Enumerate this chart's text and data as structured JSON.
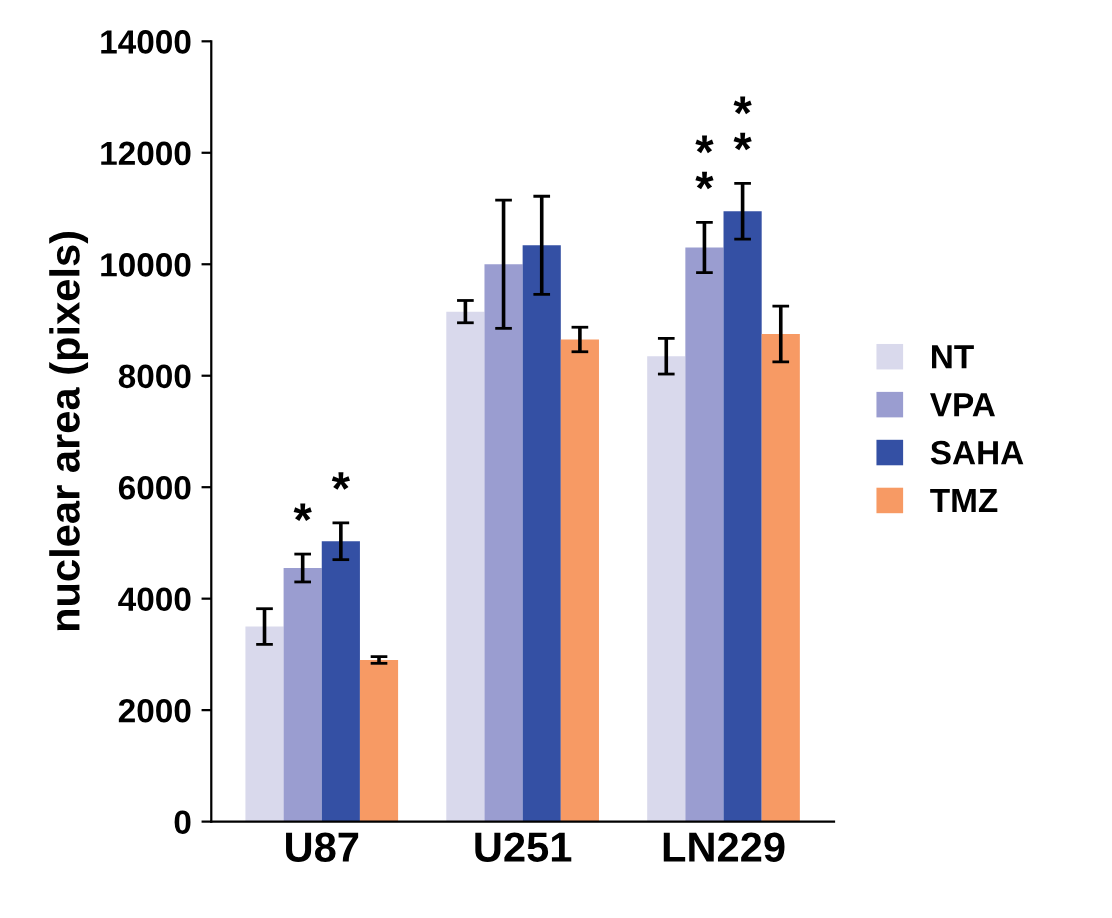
{
  "chart_data": {
    "type": "bar",
    "ylabel": "nuclear area (pixels)",
    "categories": [
      "U87",
      "U251",
      "LN229"
    ],
    "series": [
      {
        "name": "NT",
        "color": "#d9d9ec",
        "values": [
          3500,
          9150,
          8350
        ],
        "errors": [
          320,
          200,
          320
        ]
      },
      {
        "name": "VPA",
        "color": "#9a9dd0",
        "values": [
          4550,
          10000,
          10300
        ],
        "errors": [
          250,
          1150,
          450
        ]
      },
      {
        "name": "SAHA",
        "color": "#3450a4",
        "values": [
          5030,
          10340,
          10950
        ],
        "errors": [
          330,
          880,
          500
        ]
      },
      {
        "name": "TMZ",
        "color": "#f79a64",
        "values": [
          2900,
          8650,
          8750
        ],
        "errors": [
          60,
          220,
          500
        ]
      }
    ],
    "annotations": [
      {
        "text": "*",
        "x": "U87",
        "y": 4550
      },
      {
        "text": "*",
        "x": "U87",
        "y": 5030
      },
      {
        "text": "*",
        "x": "LN229",
        "y": 10300
      },
      {
        "text": "*",
        "x": "LN229",
        "y": 10300
      },
      {
        "text": "*",
        "x": "LN229",
        "y": 10950
      },
      {
        "text": "*",
        "x": "LN229",
        "y": 10950
      }
    ],
    "ylim": [
      0,
      14000
    ],
    "yticks": [
      0,
      2000,
      4000,
      6000,
      8000,
      10000,
      12000,
      14000
    ],
    "legend": "right",
    "grid": false
  }
}
